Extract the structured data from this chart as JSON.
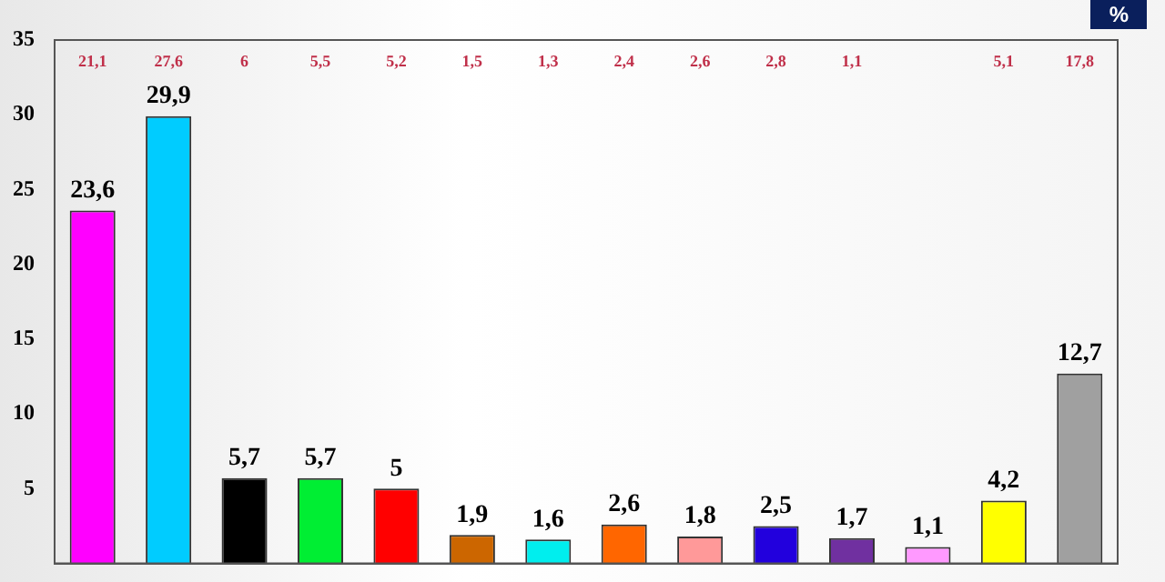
{
  "chart_data": {
    "type": "bar",
    "ylabel": "%",
    "categories": [
      null,
      null,
      null,
      null,
      null,
      null,
      null,
      null,
      null,
      null,
      null,
      null,
      null,
      null
    ],
    "values": [
      23.6,
      29.9,
      5.7,
      5.7,
      5,
      1.9,
      1.6,
      2.6,
      1.8,
      2.5,
      1.7,
      1.1,
      4.2,
      12.7
    ],
    "colors": [
      "#ff00ff",
      "#00ccff",
      "#000000",
      "#00ee33",
      "#ff0000",
      "#cc6600",
      "#00eeee",
      "#ff6600",
      "#ff9999",
      "#2200dd",
      "#7030a0",
      "#ff99ff",
      "#ffff00",
      "#a0a0a0"
    ],
    "value_labels": [
      "23,6",
      "29,9",
      "5,7",
      "5,7",
      "5",
      "1,9",
      "1,6",
      "2,6",
      "1,8",
      "2,5",
      "1,7",
      "1,1",
      "4,2",
      "12,7"
    ],
    "annotations": [
      "21,1",
      "27,6",
      "6",
      "5,5",
      "5,2",
      "1,5",
      "1,3",
      "2,4",
      "2,6",
      "2,8",
      "1,1",
      null,
      "5,1",
      "17,8"
    ],
    "ylim": [
      0,
      35
    ],
    "yticks": [
      5,
      10,
      15,
      20,
      25,
      30,
      35
    ],
    "grid": false,
    "legend": false
  }
}
